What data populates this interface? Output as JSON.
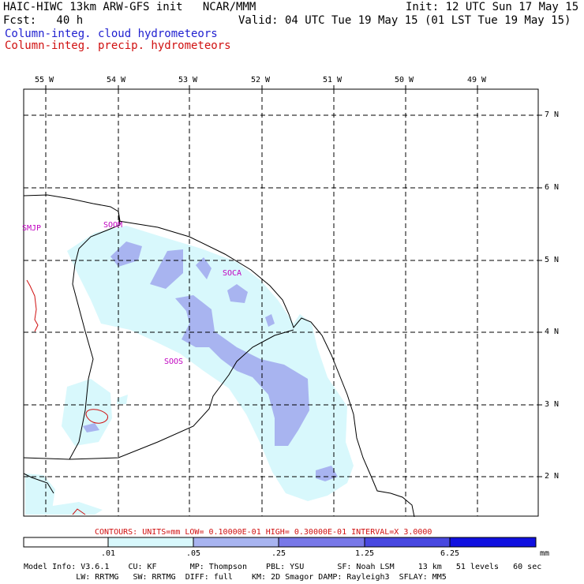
{
  "header": {
    "title_left": "HAIC-HIWC 13km ARW-GFS init   NCAR/MMM",
    "init": "Init: 12 UTC Sun 17 May 15",
    "fcst": "Fcst:   40 h",
    "valid": "Valid: 04 UTC Tue 19 May 15 (01 LST Tue 19 May 15)",
    "field_cloud": "Column-integ. cloud hydrometeors",
    "field_precip": "Column-integ. precip. hydrometeors"
  },
  "map": {
    "lon_labels": [
      "55 W",
      "54 W",
      "53 W",
      "52 W",
      "51 W",
      "50 W",
      "49 W"
    ],
    "lat_labels": [
      "7 N",
      "6 N",
      "5 N",
      "4 N",
      "3 N",
      "2 N"
    ],
    "stations": [
      "SMJP",
      "SOOM",
      "SOCA",
      "SOOS"
    ],
    "colors": {
      "cloud_light": "#d8f8fc",
      "cloud_mid": "#a8b4f0",
      "precip": "#d01010",
      "coast": "#000000"
    }
  },
  "contours_note": "CONTOURS:  UNITS=mm  LOW= 0.10000E-01  HIGH= 0.30000E-01  INTERVAL=X  3.0000",
  "colorbar": {
    "labels": [
      ".01",
      ".05",
      ".25",
      "1.25",
      "6.25",
      "mm"
    ],
    "colors": [
      "#ffffff",
      "#d8f8fc",
      "#a8b4f0",
      "#7878e8",
      "#4848e0",
      "#1010e0"
    ]
  },
  "footer": {
    "line1": "Model Info: V3.6.1    CU: KF       MP: Thompson    PBL: YSU       SF: Noah LSM     13 km   51 levels   60 sec",
    "line2": "           LW: RRTMG   SW: RRTMG  DIFF: full    KM: 2D Smagor DAMP: Rayleigh3  SFLAY: MM5"
  }
}
